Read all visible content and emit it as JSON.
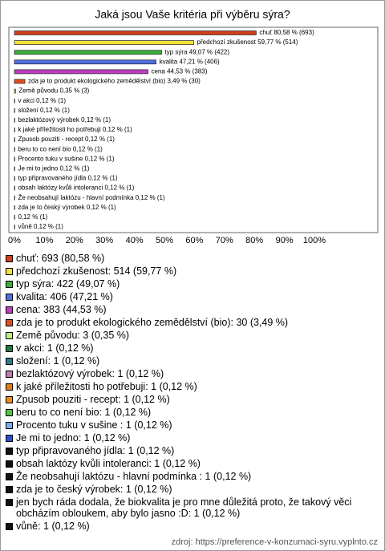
{
  "chart_data": {
    "type": "bar",
    "orientation": "horizontal",
    "title": "Jaká jsou Vaše kritéria při výběru sýra?",
    "values": [
      80.58,
      59.77,
      49.07,
      47.21,
      44.53,
      3.49,
      0.35,
      0.12,
      0.12,
      0.12,
      0.12,
      0.12,
      0.12,
      0.12,
      0.12,
      0.12,
      0.12,
      0.12,
      0.12,
      0.12,
      0.12
    ],
    "value_labels": [
      "chuť 80,58 % (693)",
      "předchozí zkušenost 59,77 % (514)",
      "typ sýra 49,07 % (422)",
      "kvalita 47,21 % (406)",
      "cena 44,53 % (383)",
      "zda je to produkt ekologického zemědělství (bio) 3,49 % (30)",
      "Země původu 0,35 % (3)",
      "v akci 0,12 % (1)",
      "složení 0,12 % (1)",
      "bezlaktózový výrobek 0,12 % (1)",
      "k jaké příležitosti ho potřebuji 0,12 % (1)",
      "Zpusob pouziti - recept 0,12 % (1)",
      "beru to co není bio 0,12 % (1)",
      "Procento tuku v sušine  0,12 % (1)",
      "Je mi to jedno 0,12 % (1)",
      "typ připravovaného jídla 0,12 % (1)",
      "obsah laktózy kvůli intoleranci 0,12 % (1)",
      "Že neobsahují laktózu - hlavní podmínka  0,12 % (1)",
      "zda je to český výrobek 0,12 % (1)",
      "0,12 % (1)",
      "vůně 0,12 % (1)"
    ],
    "legend_labels": [
      "chuť: 693 (80,58 %)",
      "předchozí zkušenost: 514 (59,77 %)",
      "typ sýra: 422 (49,07 %)",
      "kvalita: 406 (47,21 %)",
      "cena: 383 (44,53 %)",
      "zda je to produkt ekologického zemědělství (bio): 30 (3,49 %)",
      "Země původu: 3 (0,35 %)",
      "v akci: 1 (0,12 %)",
      "složení: 1 (0,12 %)",
      "bezlaktózový výrobek: 1 (0,12 %)",
      "k jaké příležitosti ho potřebuji: 1 (0,12 %)",
      "Zpusob pouziti - recept: 1 (0,12 %)",
      "beru to co není bio: 1 (0,12 %)",
      "Procento tuku v sušine : 1 (0,12 %)",
      "Je mi to jedno: 1 (0,12 %)",
      "typ připravovaného jídla: 1 (0,12 %)",
      "obsah laktózy kvůli intoleranci: 1 (0,12 %)",
      "Že neobsahují laktózu - hlavní podmínka : 1 (0,12 %)",
      "zda je to český výrobek: 1 (0,12 %)",
      "jen bych ráda dodala, že biokvalita je pro mne důležitá proto, že takový věci obcházím obloukem, aby bylo jasno :D: 1 (0,12 %)",
      "vůně: 1 (0,12 %)"
    ],
    "colors": [
      "#d0401c",
      "#f2e23a",
      "#3cae3c",
      "#4f6fe0",
      "#c23cc2",
      "#e0501e",
      "#b8f080",
      "#1f7a3a",
      "#2f7a8a",
      "#c07ab8",
      "#e07c1e",
      "#e8901e",
      "#4cc83c",
      "#7eaaf0",
      "#2e4ed0",
      "#111111",
      "#111111",
      "#111111",
      "#111111",
      "#111111",
      "#111111"
    ],
    "xlim": [
      0,
      100
    ],
    "xticks": [
      {
        "value": 0,
        "label": "0%"
      },
      {
        "value": 10,
        "label": "10%"
      },
      {
        "value": 20,
        "label": "20%"
      },
      {
        "value": 30,
        "label": "30%"
      },
      {
        "value": 40,
        "label": "40%"
      },
      {
        "value": 50,
        "label": "50%"
      },
      {
        "value": 60,
        "label": "60%"
      },
      {
        "value": 70,
        "label": "70%"
      },
      {
        "value": 80,
        "label": "80%"
      },
      {
        "value": 90,
        "label": "90%"
      },
      {
        "value": 100,
        "label": "100%"
      }
    ],
    "source": "zdroj: https://preference-v-konzumaci-syru.vyplnto.cz"
  }
}
